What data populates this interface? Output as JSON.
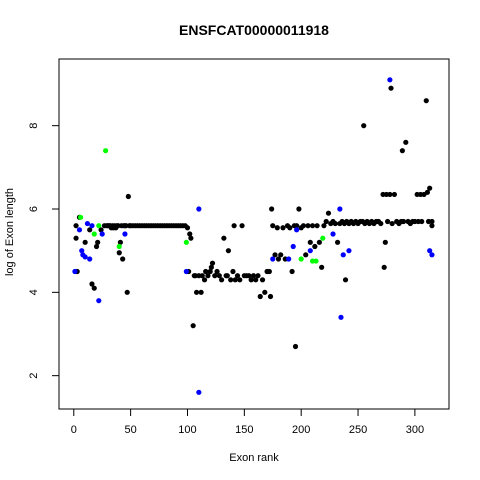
{
  "colors": {
    "black": "#000000",
    "blue": "#0000ff",
    "green": "#00ff00"
  },
  "chart_data": {
    "type": "scatter",
    "title": "ENSFCAT00000011918",
    "xlabel": "Exon rank",
    "ylabel": "log of Exon length",
    "xlim": [
      -13,
      330
    ],
    "ylim": [
      1.2,
      9.6
    ],
    "x_ticks": [
      0,
      50,
      100,
      150,
      200,
      250,
      300
    ],
    "y_ticks": [
      2,
      4,
      6,
      8
    ],
    "grid": false,
    "legend": "none",
    "series": [
      {
        "color": "black",
        "points": [
          [
            2,
            5.6
          ],
          [
            2,
            5.3
          ],
          [
            3,
            4.5
          ],
          [
            5,
            5.8
          ],
          [
            10,
            5.2
          ],
          [
            14,
            5.5
          ],
          [
            16,
            4.2
          ],
          [
            18,
            4.1
          ],
          [
            20,
            5.1
          ],
          [
            21,
            5.2
          ],
          [
            24,
            5.5
          ],
          [
            27,
            5.6
          ],
          [
            29,
            5.6
          ],
          [
            30,
            5.6
          ],
          [
            31,
            5.6
          ],
          [
            32,
            5.6
          ],
          [
            33,
            5.55
          ],
          [
            34,
            5.6
          ],
          [
            35,
            5.55
          ],
          [
            36,
            5.6
          ],
          [
            37,
            5.55
          ],
          [
            38,
            5.6
          ],
          [
            39,
            5.6
          ],
          [
            40,
            4.95
          ],
          [
            41,
            5.2
          ],
          [
            42,
            5.6
          ],
          [
            43,
            4.8
          ],
          [
            44,
            5.6
          ],
          [
            45,
            5.6
          ],
          [
            46,
            5.6
          ],
          [
            47,
            4.0
          ],
          [
            48,
            6.3
          ],
          [
            49,
            5.6
          ],
          [
            50,
            5.6
          ],
          [
            52,
            5.6
          ],
          [
            54,
            5.6
          ],
          [
            56,
            5.6
          ],
          [
            58,
            5.6
          ],
          [
            60,
            5.6
          ],
          [
            62,
            5.6
          ],
          [
            64,
            5.6
          ],
          [
            66,
            5.6
          ],
          [
            68,
            5.6
          ],
          [
            70,
            5.6
          ],
          [
            72,
            5.6
          ],
          [
            74,
            5.6
          ],
          [
            76,
            5.6
          ],
          [
            78,
            5.6
          ],
          [
            80,
            5.6
          ],
          [
            82,
            5.6
          ],
          [
            84,
            5.6
          ],
          [
            86,
            5.6
          ],
          [
            88,
            5.6
          ],
          [
            90,
            5.6
          ],
          [
            92,
            5.6
          ],
          [
            94,
            5.6
          ],
          [
            96,
            5.6
          ],
          [
            98,
            5.6
          ],
          [
            100,
            5.55
          ],
          [
            101,
            4.5
          ],
          [
            102,
            5.4
          ],
          [
            103,
            5.3
          ],
          [
            105,
            3.2
          ],
          [
            106,
            4.4
          ],
          [
            107,
            4.4
          ],
          [
            108,
            4.0
          ],
          [
            110,
            4.4
          ],
          [
            112,
            4.0
          ],
          [
            113,
            4.4
          ],
          [
            115,
            4.3
          ],
          [
            116,
            4.5
          ],
          [
            118,
            4.4
          ],
          [
            120,
            4.5
          ],
          [
            121,
            4.6
          ],
          [
            122,
            4.7
          ],
          [
            124,
            4.4
          ],
          [
            126,
            4.5
          ],
          [
            128,
            4.4
          ],
          [
            130,
            4.3
          ],
          [
            132,
            5.3
          ],
          [
            134,
            4.4
          ],
          [
            135,
            4.4
          ],
          [
            136,
            5.0
          ],
          [
            138,
            4.3
          ],
          [
            140,
            4.5
          ],
          [
            141,
            5.6
          ],
          [
            142,
            4.3
          ],
          [
            144,
            4.4
          ],
          [
            146,
            4.3
          ],
          [
            148,
            5.6
          ],
          [
            150,
            4.4
          ],
          [
            152,
            4.4
          ],
          [
            154,
            4.4
          ],
          [
            156,
            4.3
          ],
          [
            158,
            4.4
          ],
          [
            160,
            4.3
          ],
          [
            162,
            4.4
          ],
          [
            164,
            3.9
          ],
          [
            166,
            4.3
          ],
          [
            168,
            4.0
          ],
          [
            170,
            4.5
          ],
          [
            172,
            4.5
          ],
          [
            173,
            3.9
          ],
          [
            174,
            6.0
          ],
          [
            175,
            5.6
          ],
          [
            177,
            4.9
          ],
          [
            179,
            5.55
          ],
          [
            180,
            4.8
          ],
          [
            182,
            4.9
          ],
          [
            184,
            5.55
          ],
          [
            186,
            4.8
          ],
          [
            188,
            5.6
          ],
          [
            190,
            5.55
          ],
          [
            192,
            4.5
          ],
          [
            194,
            5.6
          ],
          [
            195,
            2.7
          ],
          [
            196,
            5.6
          ],
          [
            198,
            6.0
          ],
          [
            200,
            5.55
          ],
          [
            202,
            5.6
          ],
          [
            204,
            4.9
          ],
          [
            206,
            5.6
          ],
          [
            208,
            5.2
          ],
          [
            210,
            5.6
          ],
          [
            212,
            5.1
          ],
          [
            214,
            5.6
          ],
          [
            216,
            5.2
          ],
          [
            218,
            4.6
          ],
          [
            220,
            5.6
          ],
          [
            222,
            5.7
          ],
          [
            224,
            5.9
          ],
          [
            226,
            5.65
          ],
          [
            228,
            5.7
          ],
          [
            230,
            5.65
          ],
          [
            232,
            5.2
          ],
          [
            234,
            5.65
          ],
          [
            236,
            5.7
          ],
          [
            238,
            5.65
          ],
          [
            239,
            4.3
          ],
          [
            240,
            5.7
          ],
          [
            242,
            5.65
          ],
          [
            244,
            5.7
          ],
          [
            246,
            5.65
          ],
          [
            248,
            5.7
          ],
          [
            250,
            5.65
          ],
          [
            252,
            5.7
          ],
          [
            254,
            5.7
          ],
          [
            255,
            8.0
          ],
          [
            256,
            5.65
          ],
          [
            258,
            5.7
          ],
          [
            260,
            5.65
          ],
          [
            262,
            5.7
          ],
          [
            264,
            5.65
          ],
          [
            266,
            5.7
          ],
          [
            268,
            5.7
          ],
          [
            270,
            5.65
          ],
          [
            272,
            6.35
          ],
          [
            273,
            4.6
          ],
          [
            274,
            5.2
          ],
          [
            275,
            6.35
          ],
          [
            276,
            5.7
          ],
          [
            278,
            6.35
          ],
          [
            279,
            8.9
          ],
          [
            280,
            5.65
          ],
          [
            282,
            6.35
          ],
          [
            284,
            5.7
          ],
          [
            286,
            5.65
          ],
          [
            288,
            5.7
          ],
          [
            289,
            7.4
          ],
          [
            290,
            5.7
          ],
          [
            292,
            7.6
          ],
          [
            294,
            5.7
          ],
          [
            296,
            5.65
          ],
          [
            298,
            5.7
          ],
          [
            300,
            5.7
          ],
          [
            302,
            6.35
          ],
          [
            303,
            5.7
          ],
          [
            305,
            6.35
          ],
          [
            306,
            5.7
          ],
          [
            308,
            6.35
          ],
          [
            310,
            8.6
          ],
          [
            311,
            6.4
          ],
          [
            312,
            5.7
          ],
          [
            313,
            6.5
          ],
          [
            315,
            5.7
          ],
          [
            315,
            5.6
          ]
        ]
      },
      {
        "color": "blue",
        "points": [
          [
            1,
            4.5
          ],
          [
            5,
            5.5
          ],
          [
            7,
            5.0
          ],
          [
            8,
            4.9
          ],
          [
            10,
            4.85
          ],
          [
            12,
            5.65
          ],
          [
            14,
            4.8
          ],
          [
            16,
            5.6
          ],
          [
            22,
            3.8
          ],
          [
            25,
            5.4
          ],
          [
            45,
            5.4
          ],
          [
            99,
            4.5
          ],
          [
            110,
            6.0
          ],
          [
            110,
            1.6
          ],
          [
            175,
            4.8
          ],
          [
            189,
            4.8
          ],
          [
            193,
            5.1
          ],
          [
            196,
            5.5
          ],
          [
            208,
            5.0
          ],
          [
            228,
            5.4
          ],
          [
            234,
            6.0
          ],
          [
            235,
            3.4
          ],
          [
            237,
            4.9
          ],
          [
            242,
            5.0
          ],
          [
            278,
            9.1
          ],
          [
            313,
            5.0
          ],
          [
            315,
            4.9
          ]
        ]
      },
      {
        "color": "green",
        "points": [
          [
            6,
            5.8
          ],
          [
            18,
            5.4
          ],
          [
            22,
            5.6
          ],
          [
            28,
            7.4
          ],
          [
            40,
            5.1
          ],
          [
            99,
            5.2
          ],
          [
            200,
            4.8
          ],
          [
            210,
            4.75
          ],
          [
            213,
            4.75
          ],
          [
            219,
            5.3
          ]
        ]
      }
    ]
  }
}
